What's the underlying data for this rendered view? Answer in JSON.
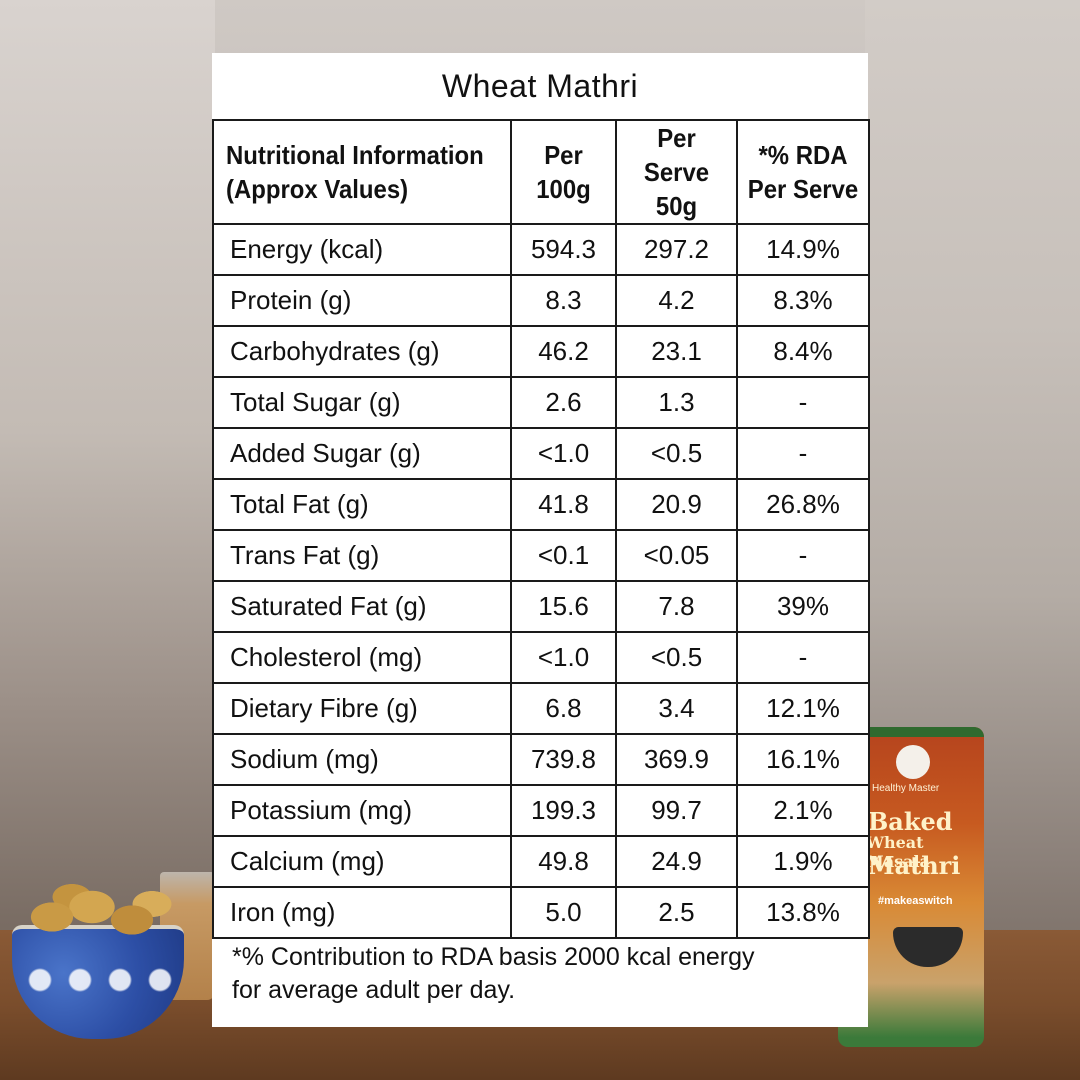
{
  "card": {
    "title": "Wheat Mathri",
    "headers": {
      "nutrient_line1": "Nutritional Information",
      "nutrient_line2": "(Approx Values)",
      "per100_line1": "Per",
      "per100_line2": "100g",
      "perserve_line1": "Per Serve",
      "perserve_line2": "50g",
      "rda_line1": "*% RDA",
      "rda_line2": "Per Serve"
    },
    "rows": [
      {
        "name": "Energy (kcal)",
        "per100": "594.3",
        "perserve": "297.2",
        "rda": "14.9%"
      },
      {
        "name": "Protein (g)",
        "per100": "8.3",
        "perserve": "4.2",
        "rda": "8.3%"
      },
      {
        "name": "Carbohydrates (g)",
        "per100": "46.2",
        "perserve": "23.1",
        "rda": "8.4%"
      },
      {
        "name": "Total Sugar (g)",
        "per100": "2.6",
        "perserve": "1.3",
        "rda": "-"
      },
      {
        "name": "Added Sugar (g)",
        "per100": "<1.0",
        "perserve": "<0.5",
        "rda": "-"
      },
      {
        "name": "Total Fat (g)",
        "per100": "41.8",
        "perserve": "20.9",
        "rda": "26.8%"
      },
      {
        "name": "Trans Fat (g)",
        "per100": "<0.1",
        "perserve": "<0.05",
        "rda": "-"
      },
      {
        "name": "Saturated Fat (g)",
        "per100": "15.6",
        "perserve": "7.8",
        "rda": "39%"
      },
      {
        "name": "Cholesterol (mg)",
        "per100": "<1.0",
        "perserve": "<0.5",
        "rda": "-"
      },
      {
        "name": "Dietary Fibre (g)",
        "per100": "6.8",
        "perserve": "3.4",
        "rda": "12.1%"
      },
      {
        "name": "Sodium (mg)",
        "per100": "739.8",
        "perserve": "369.9",
        "rda": "16.1%"
      },
      {
        "name": "Potassium (mg)",
        "per100": "199.3",
        "perserve": "99.7",
        "rda": "2.1%"
      },
      {
        "name": "Calcium (mg)",
        "per100": "49.8",
        "perserve": "24.9",
        "rda": "1.9%"
      },
      {
        "name": "Iron (mg)",
        "per100": "5.0",
        "perserve": "2.5",
        "rda": "13.8%"
      }
    ],
    "footnote_line1": "*% Contribution to RDA basis 2000 kcal energy",
    "footnote_line2": "for average adult per day."
  },
  "product": {
    "brand": "Healthy Master",
    "title_line1": "Baked",
    "title_line2": "Wheat Masala",
    "title_line3": "Mathri",
    "hashtag": "#makeaswitch"
  }
}
